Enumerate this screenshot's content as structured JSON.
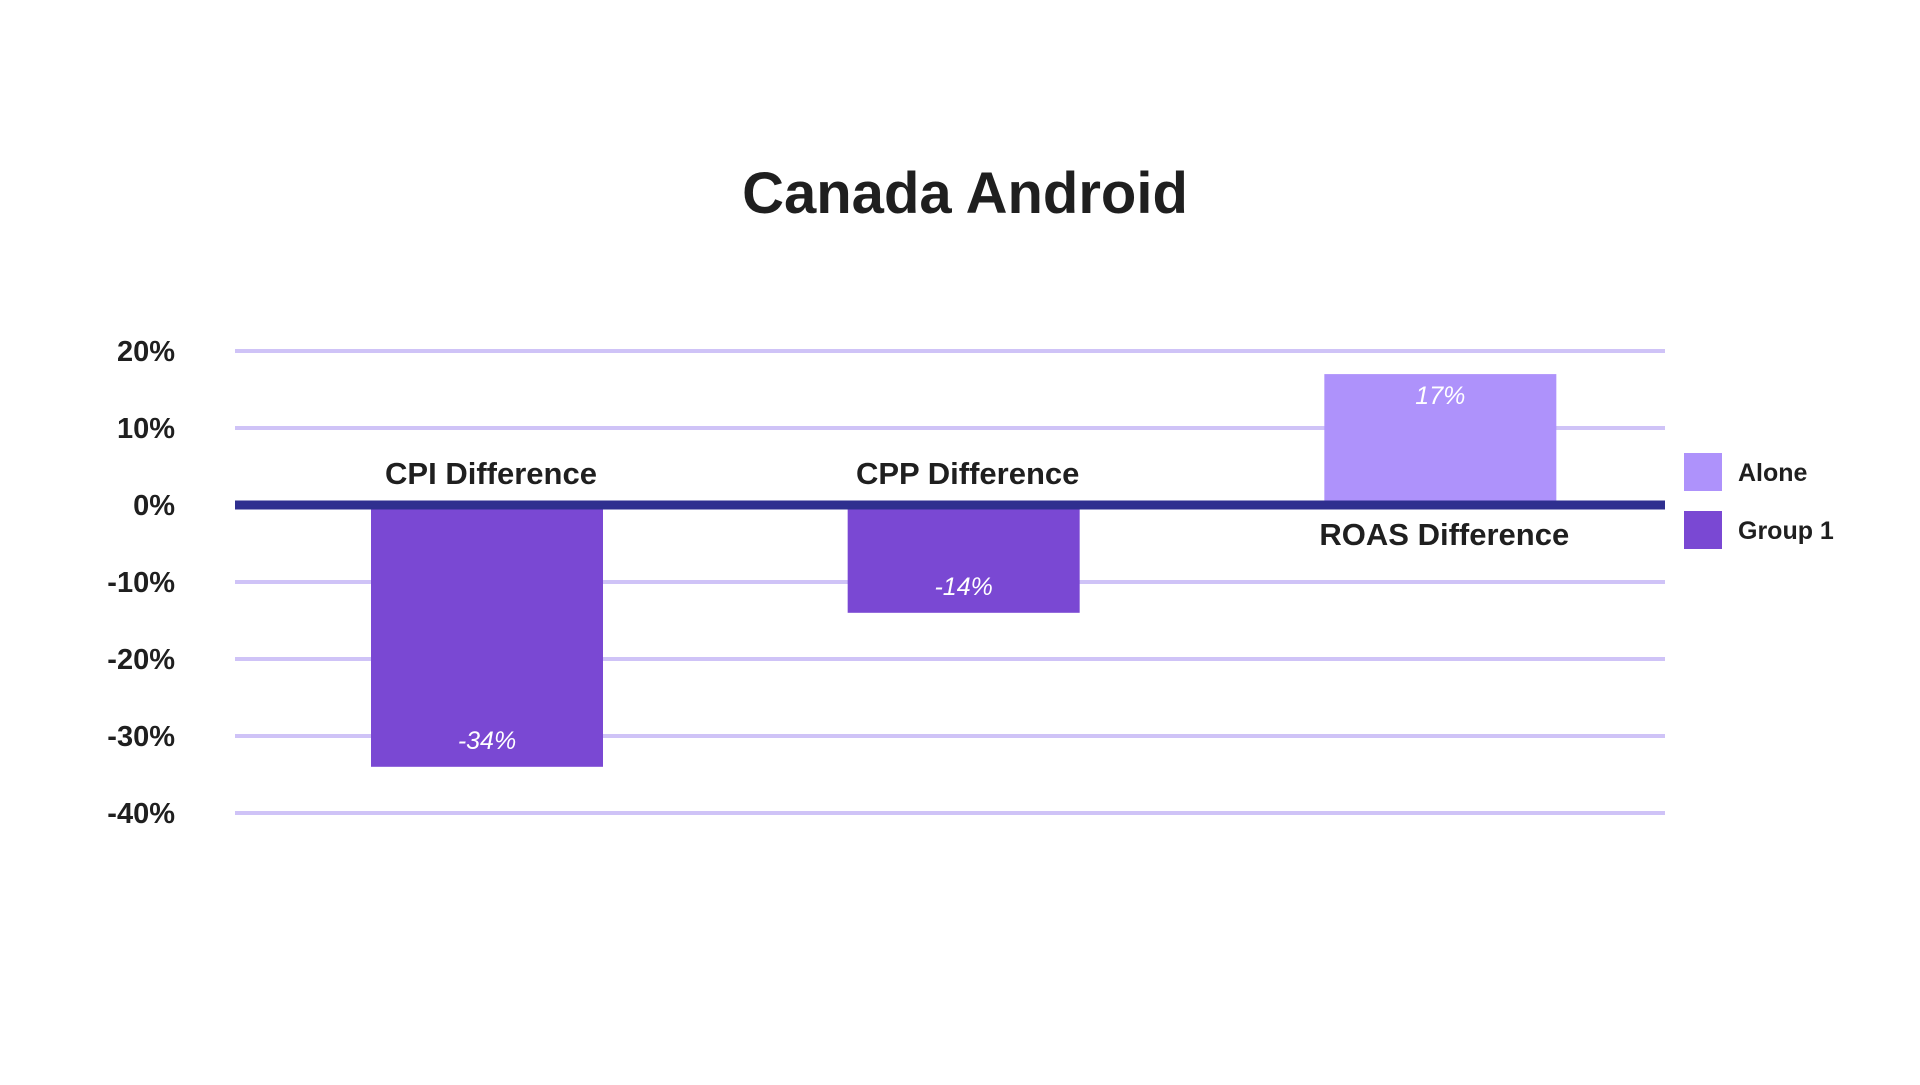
{
  "chart_data": {
    "type": "bar",
    "title": "Canada Android",
    "xlabel": "",
    "ylabel": "",
    "ylim": [
      -40,
      20
    ],
    "yticks": [
      20,
      10,
      0,
      -10,
      -20,
      -30,
      -40
    ],
    "ytick_labels": [
      "20%",
      "10%",
      "0%",
      "-10%",
      "-20%",
      "-30%",
      "-40%"
    ],
    "grid": true,
    "legend_position": "right",
    "categories": [
      "CPI Difference",
      "CPP Difference",
      "ROAS Difference"
    ],
    "bars": [
      {
        "category": "CPI Difference",
        "series": "Group 1",
        "value": -34,
        "label": "-34%"
      },
      {
        "category": "CPP Difference",
        "series": "Group 1",
        "value": -14,
        "label": "-14%"
      },
      {
        "category": "ROAS Difference",
        "series": "Alone",
        "value": 17,
        "label": "17%"
      }
    ],
    "series": [
      {
        "name": "Alone",
        "color": "#ae92fb"
      },
      {
        "name": "Group 1",
        "color": "#7a48d3"
      }
    ],
    "colors": {
      "grid": "#cfc3f7",
      "zero_line": "#2f2f8f",
      "text": "#1f1f1f",
      "data_label": "#ffffff"
    }
  }
}
